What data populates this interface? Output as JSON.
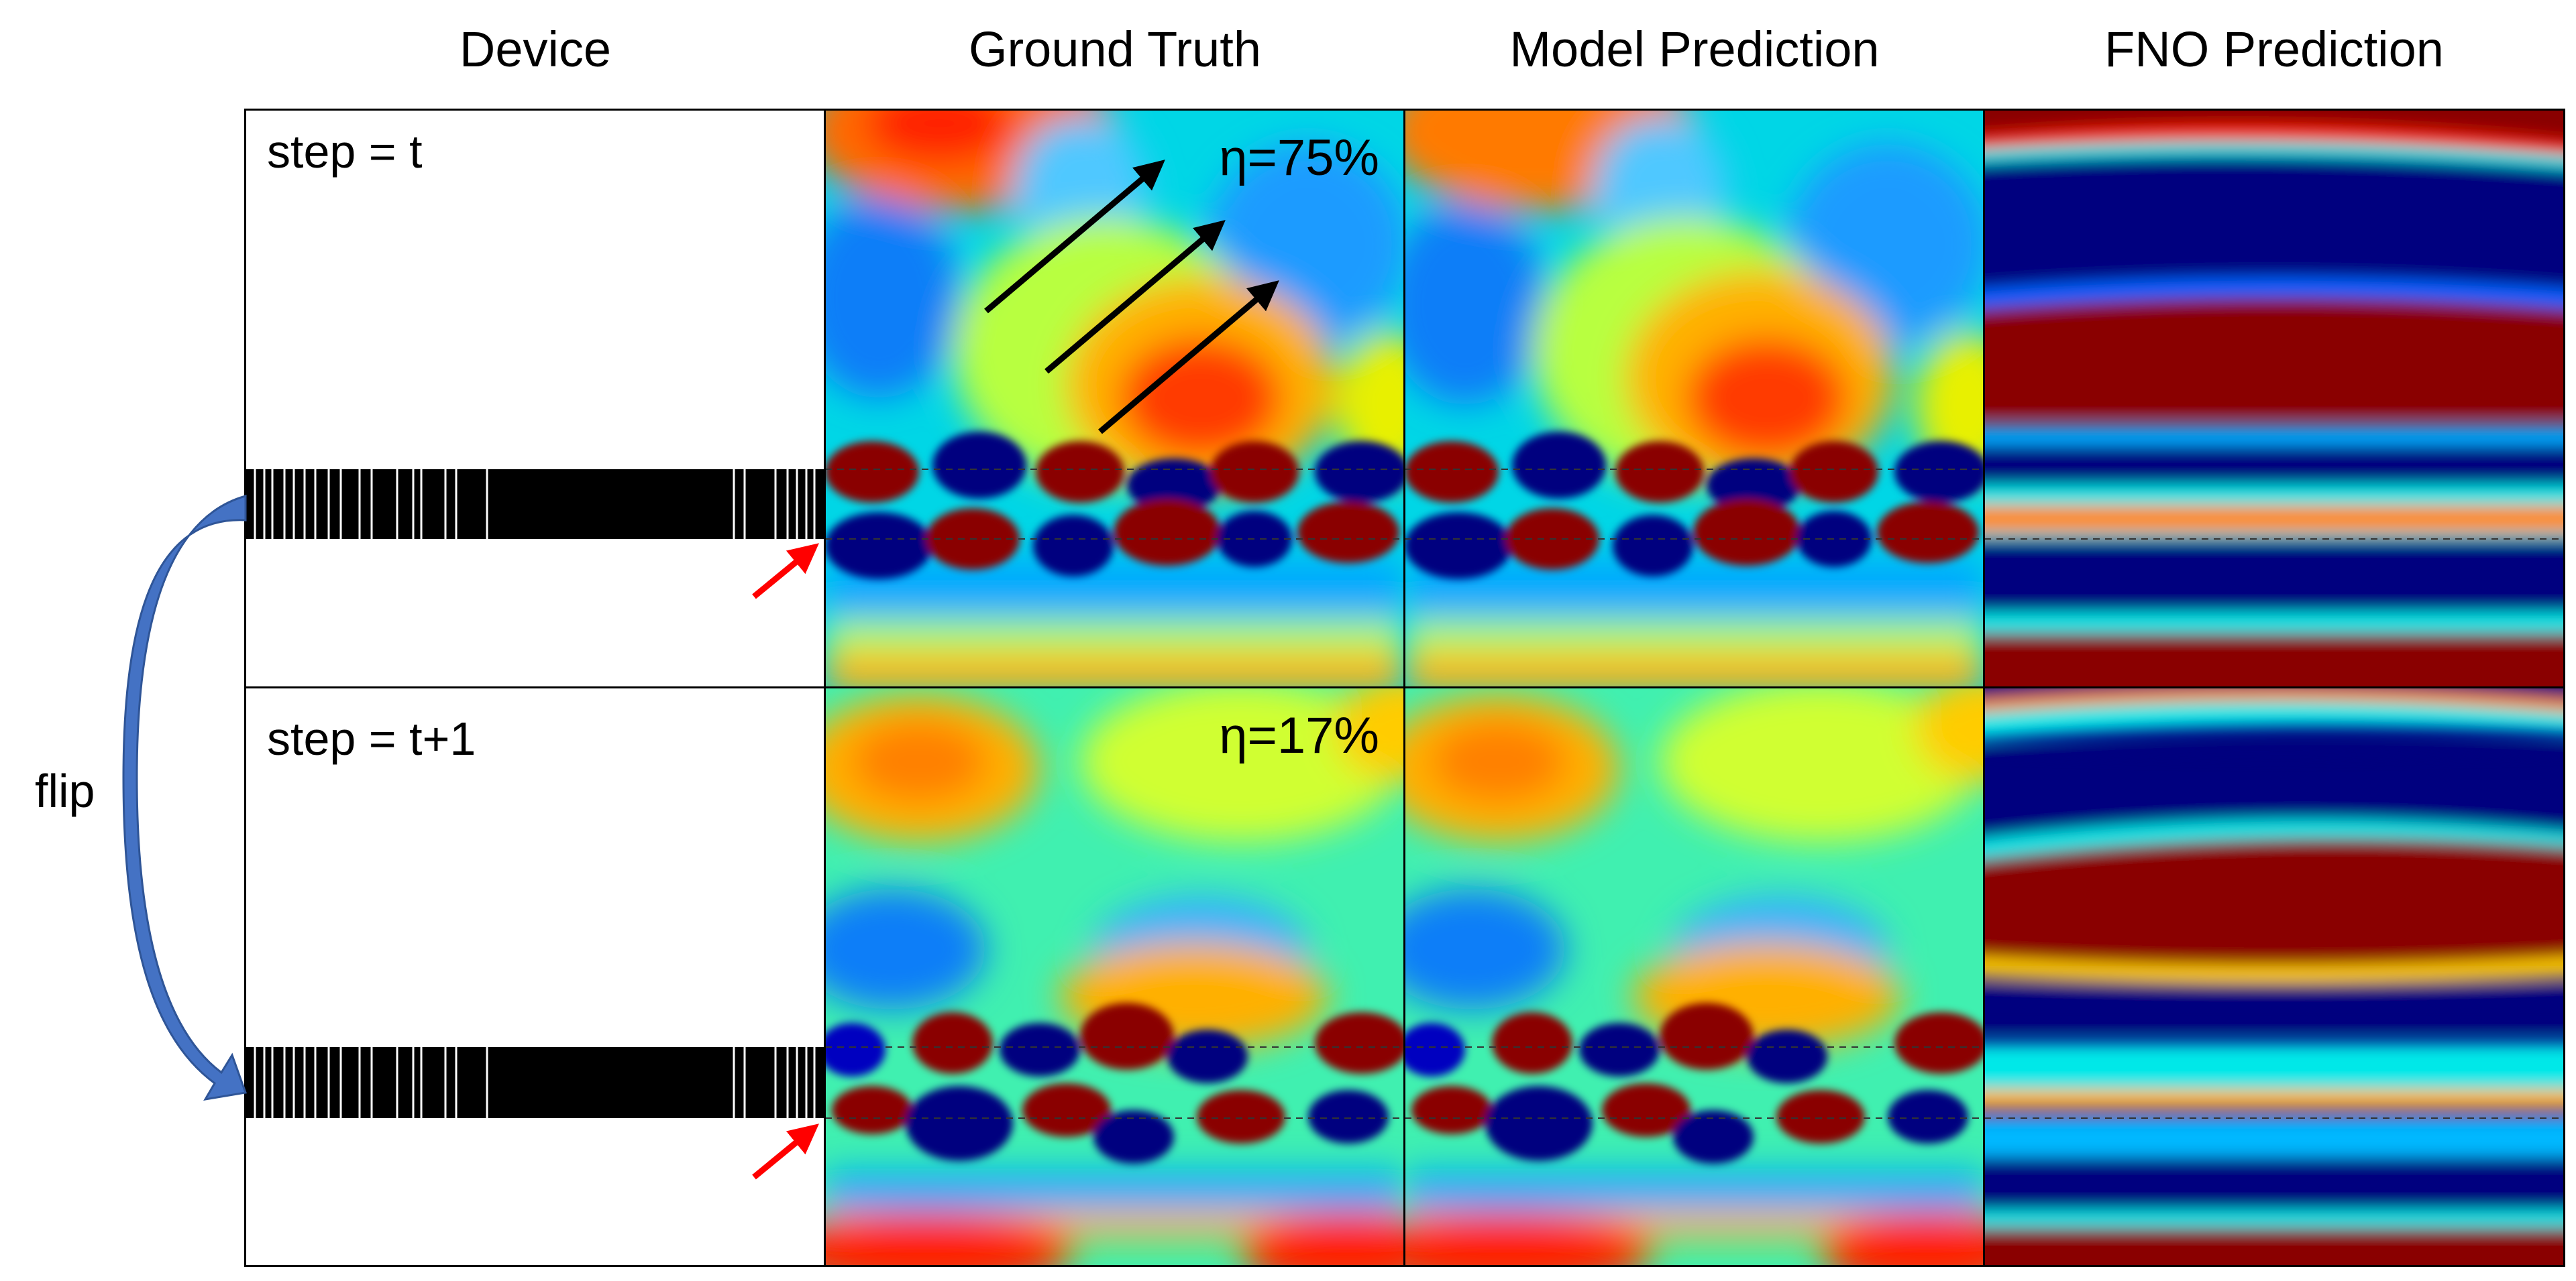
{
  "columns": {
    "device": "Device",
    "ground_truth": "Ground Truth",
    "model_prediction": "Model Prediction",
    "fno_prediction": "FNO Prediction"
  },
  "rows": [
    {
      "step_label": "step = t",
      "efficiency": "η=75%"
    },
    {
      "step_label": "step = t+1",
      "efficiency": "η=17%"
    }
  ],
  "flip_label": "flip",
  "colors": {
    "arrow_curve": "#4472c4",
    "arrow_input": "#ff0000",
    "arrow_direction": "#000000",
    "colormap": [
      "#00007f",
      "#0000ff",
      "#0088ff",
      "#00e8e8",
      "#7fff7f",
      "#e8e800",
      "#ff8800",
      "#ff1a00",
      "#8a0000"
    ]
  }
}
